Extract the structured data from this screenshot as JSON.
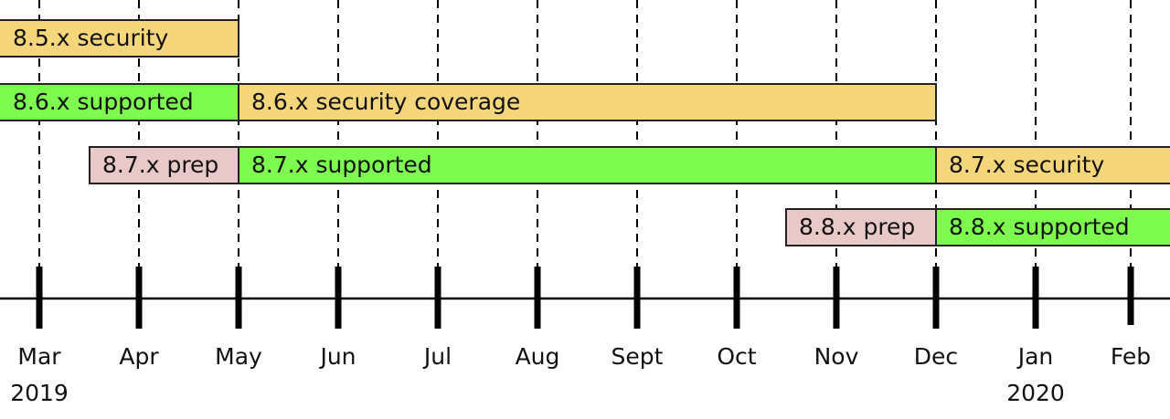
{
  "months": [
    {
      "label": "Mar",
      "year": "2019"
    },
    {
      "label": "Apr"
    },
    {
      "label": "May"
    },
    {
      "label": "Jun"
    },
    {
      "label": "Jul"
    },
    {
      "label": "Aug"
    },
    {
      "label": "Sept"
    },
    {
      "label": "Oct"
    },
    {
      "label": "Nov"
    },
    {
      "label": "Dec"
    },
    {
      "label": "Jan",
      "year": "2020"
    },
    {
      "label": "Feb"
    }
  ],
  "bars": [
    {
      "label": "8.5.x security",
      "kind": "security"
    },
    {
      "label": "8.6.x supported",
      "kind": "supported"
    },
    {
      "label": "8.6.x security coverage",
      "kind": "security"
    },
    {
      "label": "8.7.x prep",
      "kind": "prep"
    },
    {
      "label": "8.7.x supported",
      "kind": "supported"
    },
    {
      "label": "8.7.x security",
      "kind": "security"
    },
    {
      "label": "8.8.x prep",
      "kind": "prep"
    },
    {
      "label": "8.8.x supported",
      "kind": "supported"
    }
  ]
}
